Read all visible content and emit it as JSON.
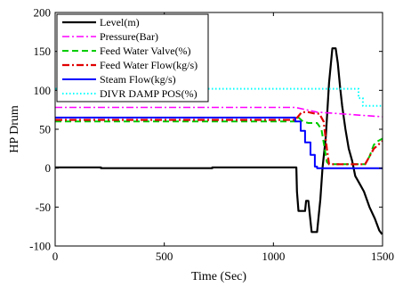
{
  "chart_data": {
    "type": "line",
    "title": "",
    "xlabel": "Time (Sec)",
    "ylabel": "HP Drum",
    "xlim": [
      0,
      1500
    ],
    "ylim": [
      -100,
      200
    ],
    "xticks": [
      "0",
      "500",
      "1000",
      "1500"
    ],
    "yticks": [
      "-100",
      "-50",
      "0",
      "50",
      "100",
      "150",
      "200"
    ],
    "xtick_values": [
      0,
      500,
      1000,
      1500
    ],
    "ytick_values": [
      -100,
      -50,
      0,
      50,
      100,
      150,
      200
    ],
    "grid": false,
    "legend_position": "top-left",
    "series": [
      {
        "name": "Level(m)",
        "color": "#000000",
        "style": "solid",
        "width": 2.2,
        "points": [
          [
            0,
            1
          ],
          [
            210,
            1
          ],
          [
            210,
            0
          ],
          [
            720,
            0
          ],
          [
            720,
            1
          ],
          [
            1105,
            1
          ],
          [
            1108,
            -30
          ],
          [
            1115,
            -55
          ],
          [
            1145,
            -55
          ],
          [
            1150,
            -42
          ],
          [
            1160,
            -42
          ],
          [
            1165,
            -55
          ],
          [
            1175,
            -82
          ],
          [
            1200,
            -82
          ],
          [
            1215,
            -40
          ],
          [
            1225,
            0
          ],
          [
            1240,
            40
          ],
          [
            1255,
            110
          ],
          [
            1270,
            154
          ],
          [
            1285,
            154
          ],
          [
            1295,
            135
          ],
          [
            1305,
            105
          ],
          [
            1315,
            80
          ],
          [
            1330,
            50
          ],
          [
            1345,
            25
          ],
          [
            1360,
            10
          ],
          [
            1375,
            -10
          ],
          [
            1395,
            -20
          ],
          [
            1415,
            -30
          ],
          [
            1440,
            -50
          ],
          [
            1465,
            -65
          ],
          [
            1485,
            -80
          ],
          [
            1498,
            -85
          ]
        ]
      },
      {
        "name": "Pressure(Bar)",
        "color": "#ff00ff",
        "style": "dashdot",
        "width": 1.6,
        "points": [
          [
            0,
            78
          ],
          [
            1100,
            78
          ],
          [
            1200,
            72
          ],
          [
            1300,
            70
          ],
          [
            1400,
            68
          ],
          [
            1500,
            66
          ]
        ]
      },
      {
        "name": "Feed Water Valve(%)",
        "color": "#00cc00",
        "style": "dashed",
        "width": 2.0,
        "points": [
          [
            0,
            60
          ],
          [
            1100,
            60
          ],
          [
            1115,
            65
          ],
          [
            1135,
            60
          ],
          [
            1160,
            58
          ],
          [
            1200,
            58
          ],
          [
            1220,
            50
          ],
          [
            1235,
            25
          ],
          [
            1245,
            8
          ],
          [
            1255,
            5
          ],
          [
            1420,
            5
          ],
          [
            1440,
            15
          ],
          [
            1460,
            30
          ],
          [
            1480,
            35
          ],
          [
            1500,
            38
          ]
        ]
      },
      {
        "name": "Feed Water Flow(kg/s)",
        "color": "#e00000",
        "style": "dashdot",
        "width": 2.2,
        "points": [
          [
            0,
            62
          ],
          [
            1100,
            62
          ],
          [
            1130,
            72
          ],
          [
            1160,
            72
          ],
          [
            1190,
            70
          ],
          [
            1210,
            70
          ],
          [
            1230,
            60
          ],
          [
            1245,
            25
          ],
          [
            1255,
            5
          ],
          [
            1420,
            5
          ],
          [
            1440,
            15
          ],
          [
            1460,
            25
          ],
          [
            1480,
            30
          ],
          [
            1500,
            35
          ]
        ]
      },
      {
        "name": "Steam Flow(kg/s)",
        "color": "#0000ff",
        "style": "solid",
        "width": 2.0,
        "points": [
          [
            0,
            65
          ],
          [
            1100,
            65
          ],
          [
            1100,
            60
          ],
          [
            1125,
            60
          ],
          [
            1125,
            48
          ],
          [
            1145,
            48
          ],
          [
            1145,
            33
          ],
          [
            1170,
            33
          ],
          [
            1170,
            17
          ],
          [
            1190,
            17
          ],
          [
            1190,
            2
          ],
          [
            1200,
            2
          ],
          [
            1200,
            0
          ],
          [
            1500,
            0
          ]
        ]
      },
      {
        "name": "DIVR DAMP POS(%)",
        "color": "#00ffff",
        "style": "dotted",
        "width": 2.0,
        "points": [
          [
            0,
            102
          ],
          [
            1390,
            102
          ],
          [
            1390,
            90
          ],
          [
            1410,
            90
          ],
          [
            1410,
            80
          ],
          [
            1500,
            80
          ]
        ]
      }
    ]
  }
}
